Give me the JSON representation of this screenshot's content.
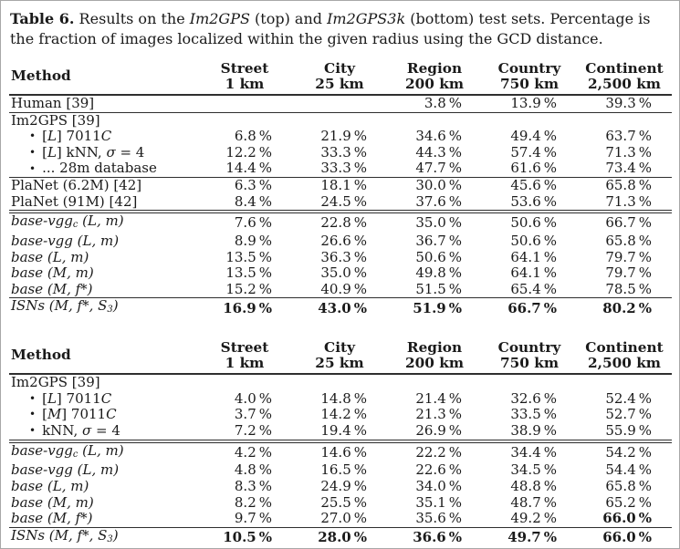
{
  "page": {
    "background": "#ffffff",
    "border_color": "#a8a8a8",
    "text_color": "#1a1a1a",
    "rule_color": "#2e2e2e"
  },
  "caption": {
    "segments": [
      {
        "t": "Table 6.",
        "s": "b"
      },
      {
        "t": " Results on the ",
        "s": "n"
      },
      {
        "t": "Im2GPS",
        "s": "i"
      },
      {
        "t": " (top) and ",
        "s": "n"
      },
      {
        "t": "Im2GPS3k",
        "s": "i"
      },
      {
        "t": " (bottom) test sets. Percentage is the fraction of images localized within the given radius using the GCD distance.",
        "s": "n"
      }
    ]
  },
  "bullet_char": "•",
  "columns": {
    "method": "Method",
    "cols": [
      {
        "name": "Street",
        "radius": "1 km"
      },
      {
        "name": "City",
        "radius": "25 km"
      },
      {
        "name": "Region",
        "radius": "200 km"
      },
      {
        "name": "Country",
        "radius": "750 km"
      },
      {
        "name": "Continent",
        "radius": "2,500 km"
      }
    ]
  },
  "tables": [
    {
      "name": "im2gps-results-table",
      "sections": [
        {
          "rule": "single",
          "rows": [
            {
              "label": [
                {
                  "t": "Human [39]",
                  "s": "n"
                }
              ],
              "values": [
                "",
                "",
                "3.8 %",
                "13.9 %",
                "39.3 %"
              ]
            }
          ]
        },
        {
          "rule": "single",
          "rows": [
            {
              "label": [
                {
                  "t": "Im2GPS [39]",
                  "s": "n"
                }
              ],
              "values": [
                "",
                "",
                "",
                "",
                ""
              ]
            },
            {
              "bullet": true,
              "label": [
                {
                  "t": "[",
                  "s": "n"
                },
                {
                  "t": "L",
                  "s": "i"
                },
                {
                  "t": "] 7011",
                  "s": "n"
                },
                {
                  "t": "C",
                  "s": "i"
                }
              ],
              "values": [
                "6.8 %",
                "21.9 %",
                "34.6 %",
                "49.4 %",
                "63.7 %"
              ]
            },
            {
              "bullet": true,
              "label": [
                {
                  "t": "[",
                  "s": "n"
                },
                {
                  "t": "L",
                  "s": "i"
                },
                {
                  "t": "] kNN, ",
                  "s": "n"
                },
                {
                  "t": "σ",
                  "s": "i"
                },
                {
                  "t": " = 4",
                  "s": "n"
                }
              ],
              "values": [
                "12.2 %",
                "33.3 %",
                "44.3 %",
                "57.4 %",
                "71.3 %"
              ]
            },
            {
              "bullet": true,
              "label": [
                {
                  "t": "... 28m database",
                  "s": "n"
                }
              ],
              "values": [
                "14.4 %",
                "33.3 %",
                "47.7 %",
                "61.6 %",
                "73.4 %"
              ]
            }
          ]
        },
        {
          "rule": "single",
          "rows": [
            {
              "label": [
                {
                  "t": "PlaNet (6.2M) [42]",
                  "s": "n"
                }
              ],
              "values": [
                "6.3 %",
                "18.1 %",
                "30.0 %",
                "45.6 %",
                "65.8 %"
              ]
            },
            {
              "label": [
                {
                  "t": "PlaNet (91M) [42]",
                  "s": "n"
                }
              ],
              "values": [
                "8.4 %",
                "24.5 %",
                "37.6 %",
                "53.6 %",
                "71.3 %"
              ]
            }
          ]
        },
        {
          "rule": "double",
          "rows": [
            {
              "label": [
                {
                  "t": "base-vgg",
                  "s": "i"
                },
                {
                  "t": "c",
                  "s": "sub"
                },
                {
                  "t": " (L, m)",
                  "s": "i"
                }
              ],
              "values": [
                "7.6 %",
                "22.8 %",
                "35.0 %",
                "50.6 %",
                "66.7 %"
              ]
            },
            {
              "label": [
                {
                  "t": "base-vgg (L, m)",
                  "s": "i"
                }
              ],
              "values": [
                "8.9 %",
                "26.6 %",
                "36.7 %",
                "50.6 %",
                "65.8 %"
              ]
            },
            {
              "label": [
                {
                  "t": "base (L, m)",
                  "s": "i"
                }
              ],
              "values": [
                "13.5 %",
                "36.3 %",
                "50.6 %",
                "64.1 %",
                "79.7 %"
              ]
            },
            {
              "label": [
                {
                  "t": "base (M, m)",
                  "s": "i"
                }
              ],
              "values": [
                "13.5 %",
                "35.0 %",
                "49.8 %",
                "64.1 %",
                "79.7 %"
              ]
            },
            {
              "label": [
                {
                  "t": "base (M, f*)",
                  "s": "i"
                }
              ],
              "values": [
                "15.2 %",
                "40.9 %",
                "51.5 %",
                "65.4 %",
                "78.5 %"
              ]
            }
          ]
        },
        {
          "rule": "single",
          "rows": [
            {
              "label": [
                {
                  "t": "ISNs (M, f*, S",
                  "s": "i"
                },
                {
                  "t": "3",
                  "s": "sub"
                },
                {
                  "t": ")",
                  "s": "i"
                }
              ],
              "bold": true,
              "values": [
                "16.9 %",
                "43.0 %",
                "51.9 %",
                "66.7 %",
                "80.2 %"
              ]
            }
          ]
        }
      ]
    },
    {
      "name": "im2gps3k-results-table",
      "sections": [
        {
          "rule": "single",
          "rows": [
            {
              "label": [
                {
                  "t": "Im2GPS [39]",
                  "s": "n"
                }
              ],
              "values": [
                "",
                "",
                "",
                "",
                ""
              ]
            },
            {
              "bullet": true,
              "label": [
                {
                  "t": "[",
                  "s": "n"
                },
                {
                  "t": "L",
                  "s": "i"
                },
                {
                  "t": "] 7011",
                  "s": "n"
                },
                {
                  "t": "C",
                  "s": "i"
                }
              ],
              "values": [
                "4.0 %",
                "14.8 %",
                "21.4 %",
                "32.6 %",
                "52.4 %"
              ]
            },
            {
              "bullet": true,
              "label": [
                {
                  "t": "[",
                  "s": "n"
                },
                {
                  "t": "M",
                  "s": "i"
                },
                {
                  "t": "] 7011",
                  "s": "n"
                },
                {
                  "t": "C",
                  "s": "i"
                }
              ],
              "values": [
                "3.7 %",
                "14.2 %",
                "21.3 %",
                "33.5 %",
                "52.7 %"
              ]
            },
            {
              "bullet": true,
              "label": [
                {
                  "t": "kNN, ",
                  "s": "n"
                },
                {
                  "t": "σ",
                  "s": "i"
                },
                {
                  "t": " = 4",
                  "s": "n"
                }
              ],
              "values": [
                "7.2 %",
                "19.4 %",
                "26.9 %",
                "38.9 %",
                "55.9 %"
              ]
            }
          ]
        },
        {
          "rule": "double",
          "rows": [
            {
              "label": [
                {
                  "t": "base-vgg",
                  "s": "i"
                },
                {
                  "t": "c",
                  "s": "sub"
                },
                {
                  "t": " (L, m)",
                  "s": "i"
                }
              ],
              "values": [
                "4.2 %",
                "14.6 %",
                "22.2 %",
                "34.4 %",
                "54.2 %"
              ]
            },
            {
              "label": [
                {
                  "t": "base-vgg (L, m)",
                  "s": "i"
                }
              ],
              "values": [
                "4.8 %",
                "16.5 %",
                "22.6 %",
                "34.5 %",
                "54.4 %"
              ]
            },
            {
              "label": [
                {
                  "t": "base (L, m)",
                  "s": "i"
                }
              ],
              "values": [
                "8.3 %",
                "24.9 %",
                "34.0 %",
                "48.8 %",
                "65.8 %"
              ]
            },
            {
              "label": [
                {
                  "t": "base (M, m)",
                  "s": "i"
                }
              ],
              "values": [
                "8.2 %",
                "25.5 %",
                "35.1 %",
                "48.7 %",
                "65.2 %"
              ]
            },
            {
              "label": [
                {
                  "t": "base (M, f*)",
                  "s": "i"
                }
              ],
              "bold_values": [
                false,
                false,
                false,
                false,
                true
              ],
              "values": [
                "9.7 %",
                "27.0 %",
                "35.6 %",
                "49.2 %",
                "66.0 %"
              ]
            }
          ]
        },
        {
          "rule": "single",
          "rows": [
            {
              "label": [
                {
                  "t": "ISNs (M, f*, S",
                  "s": "i"
                },
                {
                  "t": "3",
                  "s": "sub"
                },
                {
                  "t": ")",
                  "s": "i"
                }
              ],
              "bold": true,
              "values": [
                "10.5 %",
                "28.0 %",
                "36.6 %",
                "49.7 %",
                "66.0 %"
              ]
            }
          ]
        }
      ]
    }
  ]
}
